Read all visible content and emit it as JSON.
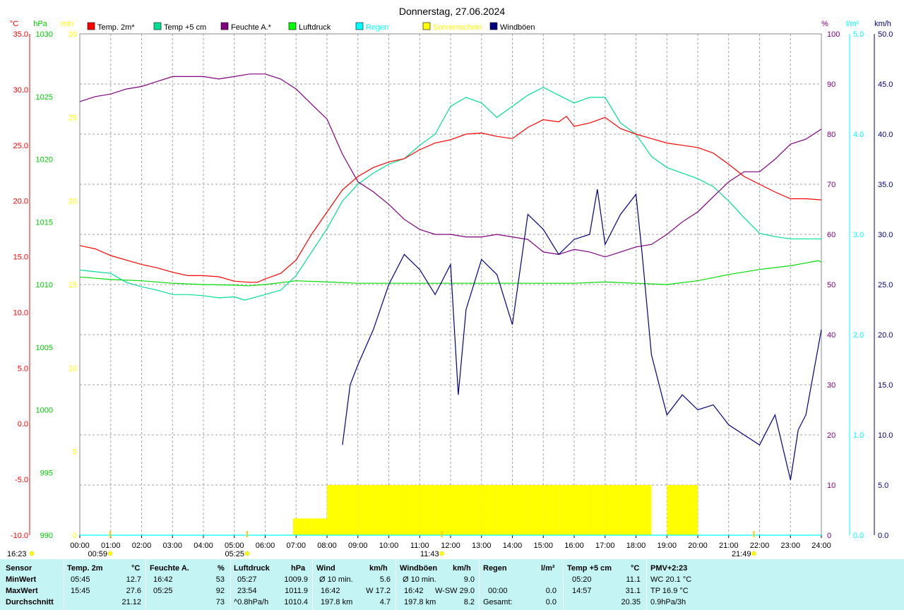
{
  "chart_data": {
    "type": "line",
    "title": "Donnerstag, 27.06.2024",
    "x_ticks": [
      "00:00",
      "01:00",
      "02:00",
      "03:00",
      "04:00",
      "05:00",
      "06:00",
      "07:00",
      "08:00",
      "09:00",
      "10:00",
      "11:00",
      "12:00",
      "13:00",
      "14:00",
      "15:00",
      "16:00",
      "17:00",
      "18:00",
      "19:00",
      "20:00",
      "21:00",
      "22:00",
      "23:00",
      "24:00"
    ],
    "axes": {
      "temp": {
        "unit": "°C",
        "ylim": [
          -10,
          35
        ],
        "ticks": [
          "35.0",
          "30.0",
          "25.0",
          "20.0",
          "15.0",
          "10.0",
          "5.0",
          "0.0",
          "-5.0",
          "-10.0"
        ],
        "color": "#ff0000"
      },
      "pressure": {
        "unit": "hPa",
        "ylim": [
          990,
          1030
        ],
        "ticks": [
          "1030",
          "1025",
          "1020",
          "1015",
          "1010",
          "1005",
          "1000",
          "995",
          "990"
        ],
        "color": "#00cc00"
      },
      "sunshine": {
        "unit": "min",
        "ylim": [
          0,
          30
        ],
        "ticks": [
          "30",
          "25",
          "20",
          "15",
          "10",
          "5",
          "0"
        ],
        "color": "#ffff00"
      },
      "humidity": {
        "unit": "%",
        "ylim": [
          0,
          100
        ],
        "ticks": [
          "100",
          "90",
          "80",
          "70",
          "60",
          "50",
          "40",
          "30",
          "20",
          "10",
          "0"
        ],
        "color": "#800080"
      },
      "rain": {
        "unit": "l/m²",
        "ylim": [
          0,
          5
        ],
        "ticks": [
          "5.0",
          "4.0",
          "3.0",
          "2.0",
          "1.0",
          "0.0"
        ],
        "color": "#00ffff"
      },
      "wind": {
        "unit": "km/h",
        "ylim": [
          0,
          50
        ],
        "ticks": [
          "50.0",
          "45.0",
          "40.0",
          "35.0",
          "30.0",
          "25.0",
          "20.0",
          "15.0",
          "10.0",
          "5.0",
          "0.0"
        ],
        "color": "#000080"
      }
    },
    "legend": [
      {
        "name": "Temp. 2m*",
        "color": "#ff0000"
      },
      {
        "name": "Temp +5 cm",
        "color": "#00e090"
      },
      {
        "name": "Feuchte A.*",
        "color": "#800080"
      },
      {
        "name": "Luftdruck",
        "color": "#00ff00"
      },
      {
        "name": "Regen",
        "color": "#00ffff"
      },
      {
        "name": "Sonnenschein",
        "color": "#ffff00"
      },
      {
        "name": "Windböen",
        "color": "#000080"
      }
    ],
    "series": [
      {
        "name": "Temp. 2m*",
        "axis": "temp",
        "x": [
          0,
          0.5,
          1,
          1.5,
          2,
          2.5,
          3,
          3.5,
          4,
          4.5,
          5,
          5.5,
          5.75,
          6,
          6.5,
          7,
          7.5,
          8,
          8.5,
          9,
          9.5,
          10,
          10.5,
          11,
          11.5,
          12,
          12.5,
          13,
          13.5,
          14,
          14.5,
          15,
          15.5,
          15.75,
          16,
          16.5,
          17,
          17.5,
          18,
          18.5,
          19,
          19.5,
          20,
          20.5,
          21,
          21.5,
          22,
          22.5,
          23,
          23.5,
          24
        ],
        "y": [
          16.0,
          15.7,
          15.1,
          14.7,
          14.3,
          14.0,
          13.6,
          13.3,
          13.3,
          13.2,
          12.8,
          12.7,
          12.7,
          13.0,
          13.5,
          14.7,
          17.0,
          19.0,
          21.0,
          22.2,
          23.0,
          23.5,
          23.8,
          24.6,
          25.2,
          25.5,
          26.0,
          26.1,
          25.8,
          25.6,
          26.6,
          27.3,
          27.1,
          27.6,
          26.7,
          27.0,
          27.5,
          26.5,
          26.0,
          25.6,
          25.2,
          25.0,
          24.8,
          24.3,
          23.3,
          22.2,
          21.5,
          20.8,
          20.2,
          20.2,
          20.1
        ]
      },
      {
        "name": "Temp +5 cm",
        "axis": "temp",
        "x": [
          0,
          1,
          1.5,
          2,
          2.5,
          3,
          3.5,
          4,
          4.5,
          5,
          5.33,
          6,
          6.5,
          7,
          7.5,
          8,
          8.5,
          9,
          9.5,
          10,
          10.5,
          11,
          11.5,
          12,
          12.5,
          13,
          13.5,
          14,
          14.5,
          15,
          15.5,
          16,
          16.5,
          17,
          17.5,
          18,
          18.5,
          19,
          19.5,
          20,
          20.5,
          21,
          21.5,
          22,
          22.5,
          23,
          23.5,
          24
        ],
        "y": [
          13.8,
          13.5,
          12.7,
          12.3,
          12.0,
          11.6,
          11.6,
          11.5,
          11.3,
          11.4,
          11.1,
          11.6,
          12.0,
          13.3,
          15.4,
          17.5,
          20.0,
          21.5,
          22.5,
          23.3,
          23.8,
          25.0,
          26.0,
          28.5,
          29.3,
          28.8,
          27.5,
          28.5,
          29.5,
          30.2,
          29.5,
          28.8,
          29.3,
          29.3,
          27.0,
          26.0,
          24.0,
          23.0,
          22.5,
          22.0,
          21.3,
          20.0,
          18.5,
          17.1,
          16.8,
          16.6,
          16.6,
          16.6
        ]
      },
      {
        "name": "Feuchte A.*",
        "axis": "humidity",
        "x": [
          0,
          0.5,
          1,
          1.5,
          2,
          2.5,
          3,
          3.5,
          4,
          4.5,
          5,
          5.5,
          6,
          6.5,
          7,
          7.5,
          8,
          8.5,
          9,
          9.5,
          10,
          10.5,
          11,
          11.5,
          12,
          12.5,
          13,
          13.5,
          14,
          14.5,
          15,
          15.5,
          16,
          16.5,
          17,
          17.5,
          18,
          18.5,
          19,
          19.5,
          20,
          20.5,
          21,
          21.5,
          22,
          22.5,
          23,
          23.5,
          24
        ],
        "y": [
          86.5,
          87.5,
          88.0,
          89.0,
          89.5,
          90.5,
          91.5,
          91.5,
          91.5,
          91.0,
          91.5,
          92.0,
          92.0,
          91.0,
          89.0,
          86.0,
          83.0,
          76.0,
          70.5,
          68.5,
          66.0,
          63.0,
          61.0,
          60.0,
          60.0,
          59.5,
          59.5,
          60.0,
          59.5,
          59.0,
          56.5,
          56.0,
          57.0,
          56.5,
          55.5,
          56.5,
          57.5,
          58.0,
          60.0,
          62.5,
          64.5,
          67.5,
          70.5,
          72.5,
          72.5,
          75.0,
          78.0,
          79.0,
          81.0
        ]
      },
      {
        "name": "Luftdruck",
        "axis": "pressure",
        "x": [
          0,
          1,
          2,
          3,
          4,
          5,
          5.45,
          6,
          7,
          8,
          9,
          10,
          11,
          12,
          13,
          14,
          15,
          16,
          17,
          18,
          19,
          20,
          21,
          22,
          23,
          23.9,
          24
        ],
        "y": [
          1010.6,
          1010.4,
          1010.3,
          1010.1,
          1010.0,
          1009.95,
          1009.9,
          1010.0,
          1010.3,
          1010.2,
          1010.1,
          1010.1,
          1010.1,
          1010.1,
          1010.1,
          1010.1,
          1010.1,
          1010.1,
          1010.2,
          1010.1,
          1010.0,
          1010.3,
          1010.8,
          1011.2,
          1011.5,
          1011.9,
          1011.8
        ]
      },
      {
        "name": "Regen",
        "axis": "rain",
        "x": [
          0,
          24
        ],
        "y": [
          0,
          0
        ]
      },
      {
        "name": "Sonnenschein",
        "axis": "sunshine",
        "x": [
          6.9,
          7.25,
          7.5,
          7.75,
          8.0,
          8.5,
          9,
          9.5,
          10,
          10.5,
          11,
          11.5,
          12,
          12.5,
          13,
          13.5,
          14,
          14.5,
          15,
          15.5,
          16,
          16.5,
          17,
          17.5,
          18,
          18.5,
          19,
          19.5,
          20
        ],
        "y": [
          1,
          1,
          1,
          1,
          3,
          3,
          3,
          3,
          3,
          3,
          3,
          3,
          3,
          3,
          3,
          3,
          3,
          3,
          3,
          3,
          3,
          3,
          3,
          3,
          3,
          0,
          3,
          3,
          0
        ]
      },
      {
        "name": "Windböen",
        "axis": "wind",
        "x": [
          0,
          8,
          8.5,
          8.75,
          9,
          9.5,
          10,
          10.5,
          11,
          11.5,
          12,
          12.25,
          12.5,
          13,
          13.5,
          14,
          14.5,
          15,
          15.5,
          16,
          16.5,
          16.75,
          17,
          17.5,
          17.75,
          18,
          18.2,
          18.5,
          18.75,
          19,
          19.5,
          20,
          20.5,
          21,
          21.5,
          22,
          22.5,
          23,
          23.25,
          23.5,
          24
        ],
        "y": [
          null,
          null,
          9.0,
          15.0,
          17.0,
          20.5,
          25.0,
          28.0,
          26.5,
          24.0,
          27.0,
          14.0,
          22.5,
          27.5,
          26.0,
          21.0,
          32.0,
          30.5,
          28.0,
          29.5,
          30.0,
          34.5,
          29.0,
          32.0,
          33.0,
          34.0,
          28.0,
          18.0,
          15.0,
          12.0,
          14.0,
          12.5,
          13.0,
          11.0,
          10.0,
          9.0,
          12.0,
          5.5,
          10.5,
          12.0,
          20.5
        ]
      }
    ],
    "markers": [
      {
        "label": "00:59",
        "color": "#ffff00"
      },
      {
        "label": "05:25",
        "color": "#ffff00"
      },
      {
        "label": "11:43",
        "color": "#ffff00"
      },
      {
        "label": "21:49",
        "color": "#ffff00"
      }
    ],
    "left_time": "16:23",
    "grid": true
  },
  "stats": {
    "header": {
      "sensor": "Sensor",
      "temp_2m": "Temp. 2m",
      "temp_2m_unit": "°C",
      "humidity": "Feuchte A.",
      "humidity_unit": "%",
      "pressure": "Luftdruck",
      "pressure_unit": "hPa",
      "wind": "Wind",
      "wind_unit": "km/h",
      "gusts": "Windböen",
      "gusts_unit": "km/h",
      "rain": "Regen",
      "rain_unit": "l/m²",
      "temp_5cm": "Temp +5 cm",
      "temp_5cm_unit": "°C",
      "pmv": "PMV+2:23"
    },
    "rows": [
      {
        "label": "MinWert",
        "temp_time": "05:45",
        "temp_val": "12.7",
        "hum_time": "16:42",
        "hum_val": "53",
        "press_time": "05:27",
        "press_val": "1009.9",
        "wind_label": "Ø 10 min.",
        "wind_val": "5.6",
        "gust_label": "Ø 10 min.",
        "gust_val": "9.0",
        "rain_time": "",
        "rain_val": "",
        "t5_time": "05:20",
        "t5_val": "11.1",
        "pmv_val": "WC 20.1 °C"
      },
      {
        "label": "MaxWert",
        "temp_time": "15:45",
        "temp_val": "27.6",
        "hum_time": "05:25",
        "hum_val": "92",
        "press_time": "23:54",
        "press_val": "1011.9",
        "wind_time": "16:42",
        "wind_dir": "W 17.2",
        "gust_time": "16:42",
        "gust_dir": "W-SW 29.0",
        "rain_time": "00:00",
        "rain_val": "0.0",
        "t5_time": "14:57",
        "t5_val": "31.1",
        "pmv_val": "TP 16.9 °C"
      },
      {
        "label": "Durchschnitt",
        "temp_val": "21.12",
        "hum_val": "73",
        "press_trend": "^0.8hPa/h",
        "press_val": "1010.4",
        "wind_dist": "197.8 km",
        "wind_val": "4.7",
        "gust_dist": "197.8 km",
        "gust_val": "8.2",
        "rain_label": "Gesamt:",
        "rain_val": "0.0",
        "t5_val": "20.35",
        "pmv_val": "0.9hPa/3h"
      }
    ]
  }
}
